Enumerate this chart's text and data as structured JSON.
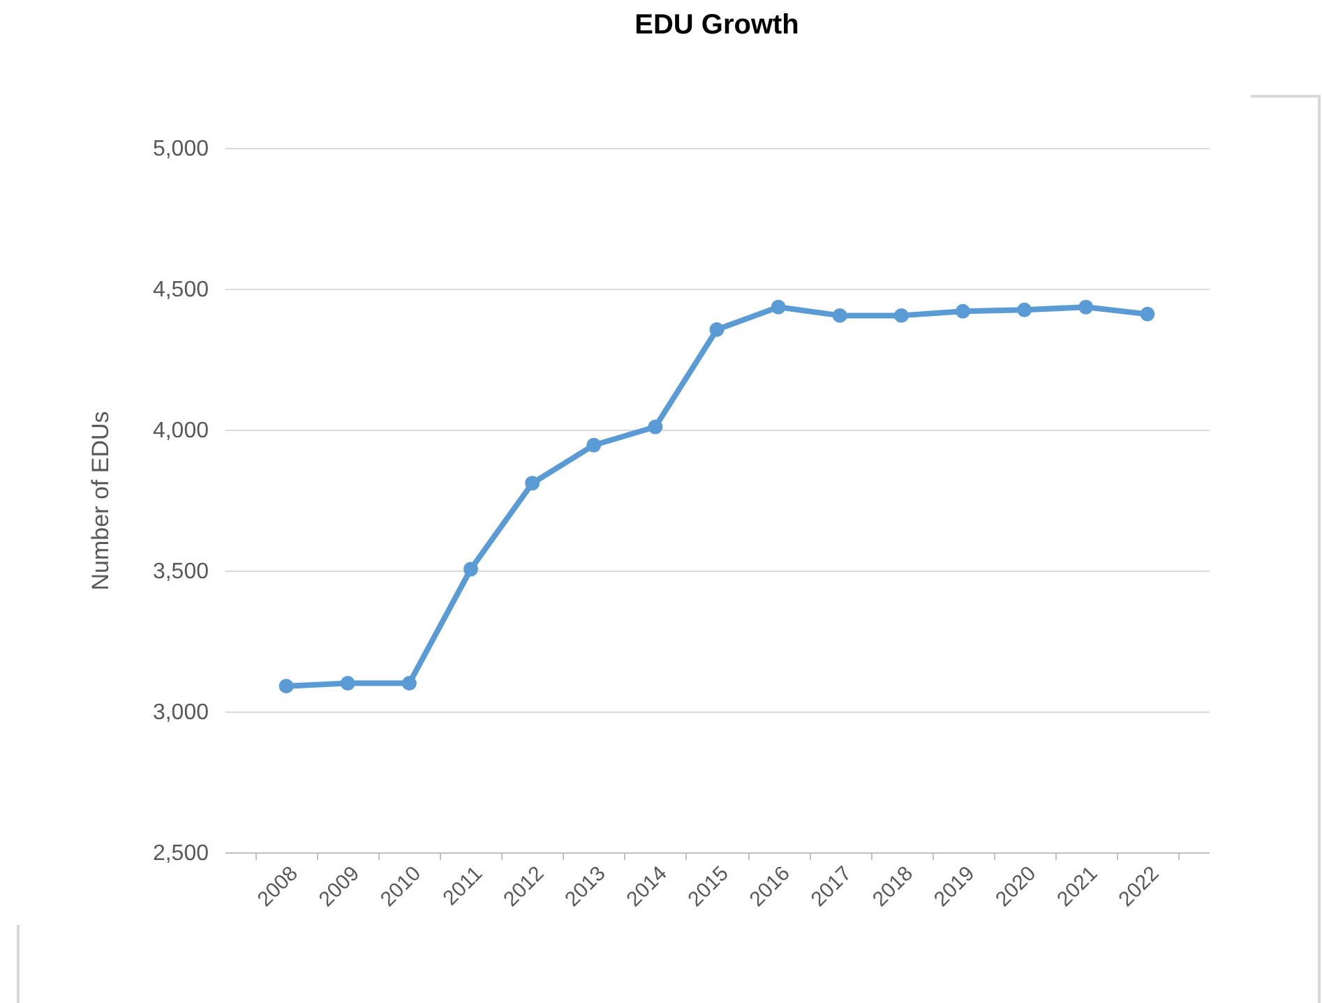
{
  "chart_data": {
    "type": "line",
    "title": "EDU Growth",
    "ylabel": "Number of EDUs",
    "categories": [
      "2008",
      "2009",
      "2010",
      "2011",
      "2012",
      "2013",
      "2014",
      "2015",
      "2016",
      "2017",
      "2018",
      "2019",
      "2020",
      "2021",
      "2022"
    ],
    "series": [
      {
        "color": "#5b9bd5",
        "values": [
          3090,
          3100,
          3100,
          3505,
          3810,
          3945,
          4010,
          4355,
          4435,
          4405,
          4405,
          4420,
          4425,
          4435,
          4410
        ]
      }
    ],
    "ylim": [
      2500,
      5000
    ],
    "yticks": [
      {
        "value": 2500,
        "label": "2,500"
      },
      {
        "value": 3000,
        "label": "3,000"
      },
      {
        "value": 3500,
        "label": "3,500"
      },
      {
        "value": 4000,
        "label": "4,000"
      },
      {
        "value": 4500,
        "label": "4,500"
      },
      {
        "value": 5000,
        "label": "5,000"
      }
    ],
    "grid": "y",
    "marker": "circle",
    "line_style": "solid"
  }
}
